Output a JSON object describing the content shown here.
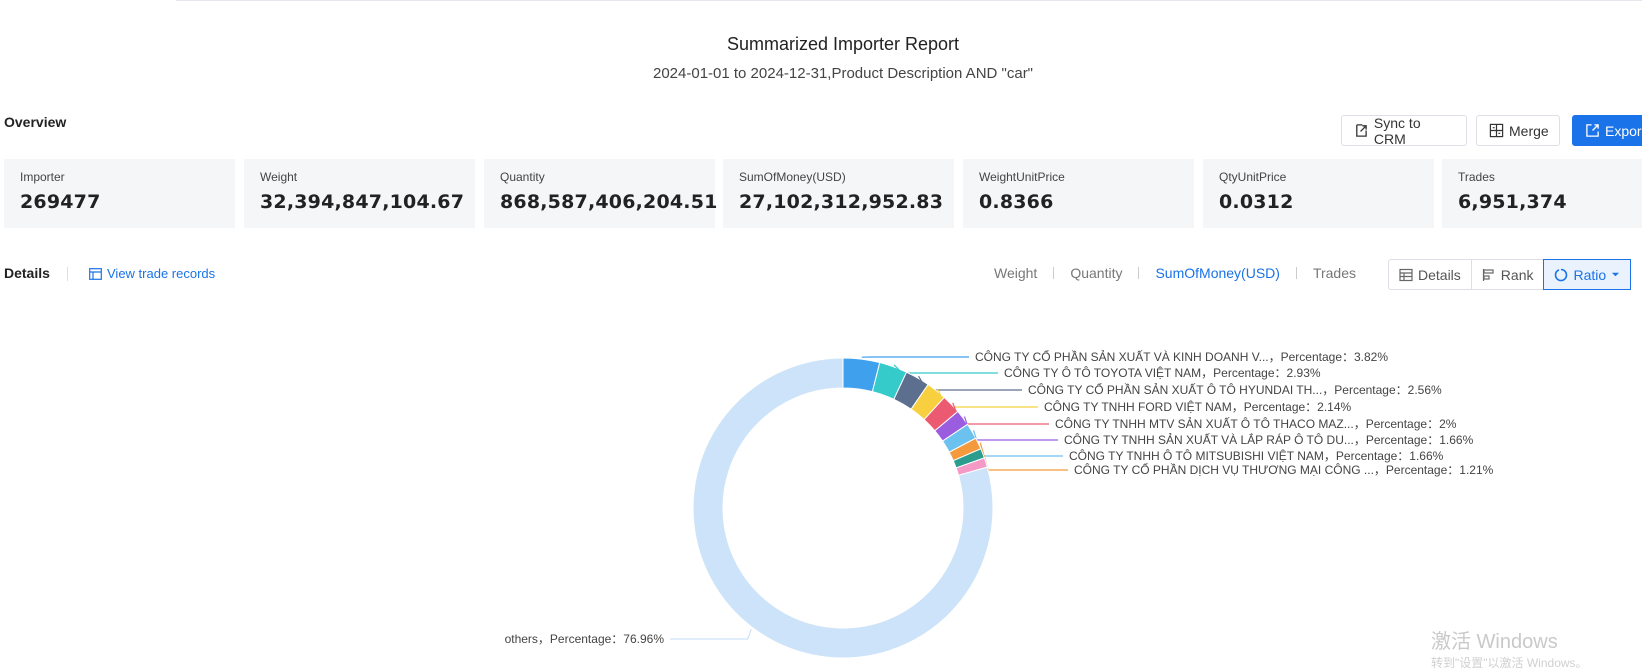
{
  "report": {
    "title": "Summarized Importer Report",
    "subtitle": "2024-01-01 to 2024-12-31,Product Description AND \"car\""
  },
  "overview": {
    "label": "Overview",
    "buttons": {
      "sync": "Sync to CRM",
      "merge": "Merge",
      "export": "Expor"
    },
    "cards": [
      {
        "label": "Importer",
        "value": "269477"
      },
      {
        "label": "Weight",
        "value": "32,394,847,104.67"
      },
      {
        "label": "Quantity",
        "value": "868,587,406,204.51"
      },
      {
        "label": "SumOfMoney(USD)",
        "value": "27,102,312,952.83"
      },
      {
        "label": "WeightUnitPrice",
        "value": "0.8366"
      },
      {
        "label": "QtyUnitPrice",
        "value": "0.0312"
      },
      {
        "label": "Trades",
        "value": "6,951,374"
      }
    ]
  },
  "details": {
    "label": "Details",
    "view_link": "View trade records",
    "metric_tabs": [
      "Weight",
      "Quantity",
      "SumOfMoney(USD)",
      "Trades"
    ],
    "active_metric": "SumOfMoney(USD)",
    "view_buttons": {
      "details": "Details",
      "rank": "Rank",
      "ratio": "Ratio"
    },
    "active_view": "Ratio"
  },
  "chart_data": {
    "type": "pie",
    "variant": "donut",
    "slices": [
      {
        "label": "CÔNG TY CỔ PHẦN SẢN XUẤT VÀ KINH DOANH V...",
        "value": 3.82,
        "color": "#3fa0ee",
        "display": "CÔNG TY CỔ PHẦN SẢN XUẤT VÀ KINH DOANH V...，Percentage：3.82%"
      },
      {
        "label": "CÔNG TY Ô TÔ TOYOTA VIỆT NAM",
        "value": 2.93,
        "color": "#36cbcb",
        "display": "CÔNG TY Ô TÔ TOYOTA VIỆT NAM，Percentage：2.93%"
      },
      {
        "label": "CÔNG TY CỔ PHẦN SẢN XUẤT Ô TÔ HYUNDAI TH...",
        "value": 2.56,
        "color": "#5d6f8f",
        "display": "CÔNG TY CỔ PHẦN SẢN XUẤT Ô TÔ HYUNDAI TH...，Percentage：2.56%"
      },
      {
        "label": "CÔNG TY TNHH FORD VIỆT NAM",
        "value": 2.14,
        "color": "#f8d03f",
        "display": "CÔNG TY TNHH FORD VIỆT NAM，Percentage：2.14%"
      },
      {
        "label": "CÔNG TY TNHH MTV SẢN XUẤT Ô TÔ THACO MAZ...",
        "value": 2,
        "color": "#ec5a72",
        "display": "CÔNG TY TNHH MTV SẢN XUẤT Ô TÔ THACO MAZ...，Percentage：2%"
      },
      {
        "label": "CÔNG TY TNHH SẢN XUẤT VÀ LẮP RÁP Ô TÔ DU...",
        "value": 1.66,
        "color": "#9b5de0",
        "display": "CÔNG TY TNHH SẢN XUẤT VÀ LẮP RÁP Ô TÔ DU...，Percentage：1.66%"
      },
      {
        "label": "CÔNG TY TNHH Ô TÔ MITSUBISHI VIỆT NAM",
        "value": 1.66,
        "color": "#6cc2ee",
        "display": "CÔNG TY TNHH Ô TÔ MITSUBISHI VIỆT NAM，Percentage：1.66%"
      },
      {
        "label": "CÔNG TY CỔ PHẦN DỊCH VỤ THƯƠNG MẠI CÔNG ...",
        "value": 1.21,
        "color": "#f49a3c",
        "display": "CÔNG TY CỔ PHẦN DỊCH VỤ THƯƠNG MẠI CÔNG ...，Percentage：1.21%"
      },
      {
        "label": "",
        "value": 1.0,
        "color": "#2a9d8f"
      },
      {
        "label": "",
        "value": 1.0,
        "color": "#f59ac7"
      },
      {
        "label": "others",
        "value": 76.96,
        "color": "#cde3f9",
        "display": "others，Percentage：76.96%"
      }
    ]
  },
  "watermark": {
    "line1": "激活 Windows",
    "line2": "转到\"设置\"以激活 Windows。"
  }
}
